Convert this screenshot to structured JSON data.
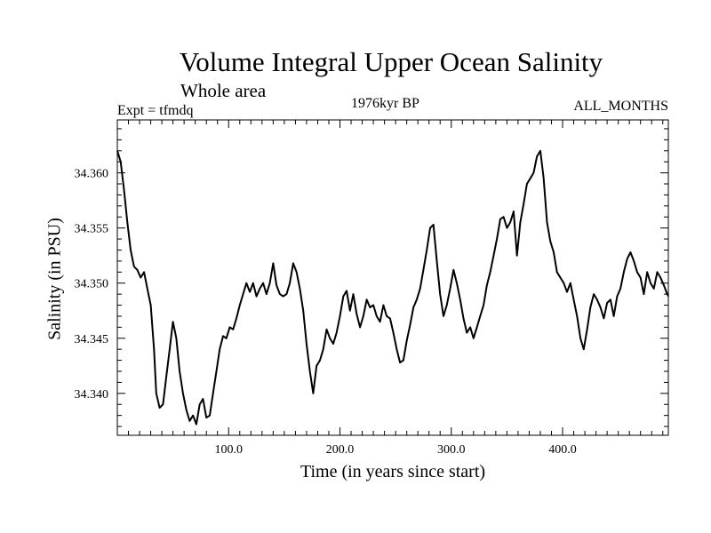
{
  "chart_data": {
    "type": "line",
    "title": "Volume Integral Upper Ocean Salinity",
    "subtitle": "Whole area",
    "left_label": "Expt = tfmdq",
    "center_label": "1976kyr BP",
    "right_label": "ALL_MONTHS",
    "xlabel": "Time (in years since start)",
    "ylabel": "Salinity (in PSU)",
    "xlim": [
      0,
      495
    ],
    "ylim": [
      34.3362,
      34.3648
    ],
    "xticks": [
      100,
      200,
      300,
      400
    ],
    "xtick_labels": [
      "100.0",
      "200.0",
      "300.0",
      "400.0"
    ],
    "yticks": [
      34.34,
      34.345,
      34.35,
      34.355,
      34.36
    ],
    "ytick_labels": [
      "34.340",
      "34.345",
      "34.350",
      "34.355",
      "34.360"
    ],
    "grid": false,
    "line_color": "#000000",
    "series": [
      {
        "name": "Salinity",
        "points": [
          [
            0,
            34.362
          ],
          [
            3,
            34.361
          ],
          [
            6,
            34.3585
          ],
          [
            9,
            34.3555
          ],
          [
            12,
            34.353
          ],
          [
            15,
            34.3515
          ],
          [
            18,
            34.3512
          ],
          [
            21,
            34.3505
          ],
          [
            24,
            34.351
          ],
          [
            27,
            34.3495
          ],
          [
            30,
            34.348
          ],
          [
            33,
            34.344
          ],
          [
            35,
            34.34
          ],
          [
            38,
            34.3387
          ],
          [
            41,
            34.339
          ],
          [
            44,
            34.3415
          ],
          [
            47,
            34.344
          ],
          [
            50,
            34.3465
          ],
          [
            53,
            34.345
          ],
          [
            56,
            34.342
          ],
          [
            59,
            34.34
          ],
          [
            62,
            34.3385
          ],
          [
            65,
            34.3375
          ],
          [
            68,
            34.338
          ],
          [
            71,
            34.3372
          ],
          [
            74,
            34.339
          ],
          [
            77,
            34.3395
          ],
          [
            80,
            34.3378
          ],
          [
            83,
            34.338
          ],
          [
            86,
            34.34
          ],
          [
            89,
            34.342
          ],
          [
            92,
            34.344
          ],
          [
            95,
            34.3452
          ],
          [
            98,
            34.345
          ],
          [
            101,
            34.346
          ],
          [
            104,
            34.3458
          ],
          [
            107,
            34.3468
          ],
          [
            110,
            34.348
          ],
          [
            113,
            34.349
          ],
          [
            116,
            34.35
          ],
          [
            119,
            34.3492
          ],
          [
            122,
            34.35
          ],
          [
            125,
            34.3488
          ],
          [
            128,
            34.3495
          ],
          [
            131,
            34.35
          ],
          [
            134,
            34.349
          ],
          [
            137,
            34.35
          ],
          [
            140,
            34.3518
          ],
          [
            143,
            34.3498
          ],
          [
            146,
            34.349
          ],
          [
            149,
            34.3488
          ],
          [
            152,
            34.349
          ],
          [
            155,
            34.35
          ],
          [
            158,
            34.3518
          ],
          [
            161,
            34.351
          ],
          [
            164,
            34.3495
          ],
          [
            167,
            34.3475
          ],
          [
            170,
            34.3445
          ],
          [
            173,
            34.342
          ],
          [
            176,
            34.34
          ],
          [
            179,
            34.3425
          ],
          [
            182,
            34.343
          ],
          [
            185,
            34.344
          ],
          [
            188,
            34.3458
          ],
          [
            191,
            34.345
          ],
          [
            194,
            34.3445
          ],
          [
            197,
            34.3455
          ],
          [
            200,
            34.347
          ],
          [
            203,
            34.3488
          ],
          [
            206,
            34.3493
          ],
          [
            209,
            34.3475
          ],
          [
            212,
            34.349
          ],
          [
            215,
            34.3472
          ],
          [
            218,
            34.346
          ],
          [
            221,
            34.347
          ],
          [
            224,
            34.3485
          ],
          [
            227,
            34.3478
          ],
          [
            230,
            34.348
          ],
          [
            233,
            34.347
          ],
          [
            236,
            34.3465
          ],
          [
            239,
            34.348
          ],
          [
            242,
            34.347
          ],
          [
            245,
            34.3468
          ],
          [
            248,
            34.3455
          ],
          [
            251,
            34.344
          ],
          [
            254,
            34.3428
          ],
          [
            257,
            34.343
          ],
          [
            260,
            34.3448
          ],
          [
            263,
            34.3462
          ],
          [
            266,
            34.3478
          ],
          [
            269,
            34.3485
          ],
          [
            272,
            34.3495
          ],
          [
            275,
            34.3512
          ],
          [
            278,
            34.353
          ],
          [
            281,
            34.355
          ],
          [
            284,
            34.3553
          ],
          [
            287,
            34.352
          ],
          [
            290,
            34.349
          ],
          [
            293,
            34.347
          ],
          [
            296,
            34.348
          ],
          [
            299,
            34.3495
          ],
          [
            302,
            34.3512
          ],
          [
            305,
            34.35
          ],
          [
            308,
            34.3485
          ],
          [
            311,
            34.3468
          ],
          [
            314,
            34.3455
          ],
          [
            317,
            34.346
          ],
          [
            320,
            34.345
          ],
          [
            323,
            34.346
          ],
          [
            326,
            34.347
          ],
          [
            329,
            34.348
          ],
          [
            332,
            34.3498
          ],
          [
            335,
            34.351
          ],
          [
            338,
            34.3525
          ],
          [
            341,
            34.354
          ],
          [
            344,
            34.3558
          ],
          [
            347,
            34.356
          ],
          [
            350,
            34.355
          ],
          [
            353,
            34.3555
          ],
          [
            356,
            34.3565
          ],
          [
            359,
            34.3525
          ],
          [
            362,
            34.3555
          ],
          [
            365,
            34.3572
          ],
          [
            368,
            34.359
          ],
          [
            371,
            34.3595
          ],
          [
            374,
            34.36
          ],
          [
            377,
            34.3615
          ],
          [
            380,
            34.362
          ],
          [
            383,
            34.3595
          ],
          [
            386,
            34.3555
          ],
          [
            389,
            34.3538
          ],
          [
            392,
            34.3528
          ],
          [
            395,
            34.351
          ],
          [
            398,
            34.3505
          ],
          [
            401,
            34.35
          ],
          [
            404,
            34.3492
          ],
          [
            407,
            34.35
          ],
          [
            410,
            34.3485
          ],
          [
            413,
            34.347
          ],
          [
            416,
            34.345
          ],
          [
            419,
            34.344
          ],
          [
            422,
            34.3458
          ],
          [
            425,
            34.3478
          ],
          [
            428,
            34.349
          ],
          [
            431,
            34.3485
          ],
          [
            434,
            34.3478
          ],
          [
            437,
            34.3468
          ],
          [
            440,
            34.3482
          ],
          [
            443,
            34.3485
          ],
          [
            446,
            34.347
          ],
          [
            449,
            34.3488
          ],
          [
            452,
            34.3495
          ],
          [
            455,
            34.351
          ],
          [
            458,
            34.3522
          ],
          [
            461,
            34.3528
          ],
          [
            464,
            34.352
          ],
          [
            467,
            34.351
          ],
          [
            470,
            34.3505
          ],
          [
            473,
            34.349
          ],
          [
            476,
            34.351
          ],
          [
            479,
            34.35
          ],
          [
            482,
            34.3495
          ],
          [
            485,
            34.351
          ],
          [
            488,
            34.3505
          ],
          [
            491,
            34.3498
          ],
          [
            494,
            34.349
          ],
          [
            495,
            34.3488
          ]
        ]
      }
    ]
  }
}
